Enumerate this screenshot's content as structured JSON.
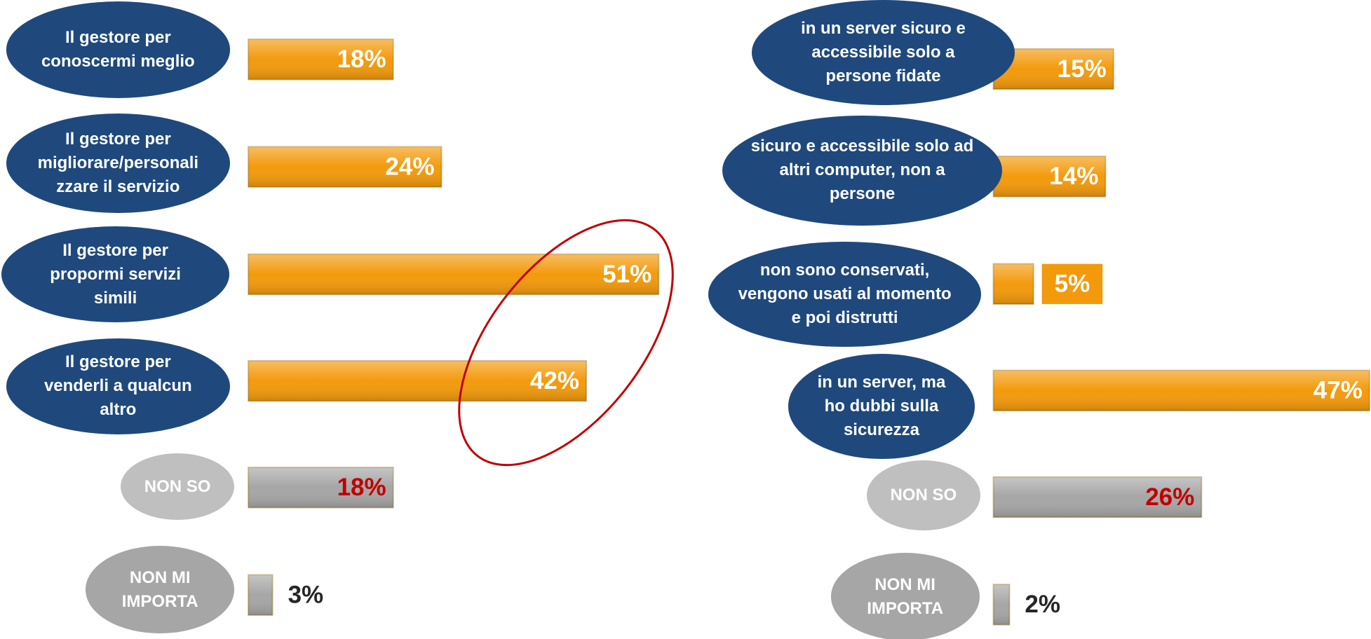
{
  "chart_data": [
    {
      "type": "bar",
      "categories": [
        "Il gestore per conoscermi meglio",
        "Il gestore per migliorare/personalizzare il servizio",
        "Il gestore per propormi servizi simili",
        "Il gestore per venderli a qualcun altro",
        "NON SO",
        "NON MI IMPORTA"
      ],
      "values": [
        18,
        24,
        51,
        42,
        18,
        3
      ],
      "value_labels": [
        "18%",
        "24%",
        "51%",
        "42%",
        "18%",
        "3%"
      ],
      "colors": [
        "#f39a0c",
        "#f39a0c",
        "#f39a0c",
        "#f39a0c",
        "#a6a6a6",
        "#a6a6a6"
      ],
      "label_colors": [
        "#ffffff",
        "#ffffff",
        "#ffffff",
        "#ffffff",
        "#c00000",
        "#262626"
      ]
    },
    {
      "type": "bar",
      "categories": [
        "in un server sicuro e accessibile solo a persone fidate",
        "sicuro e accessibile solo ad altri computer, non a persone",
        "non sono conservati, vengono usati al momento e poi distrutti",
        "in un server, ma ho dubbi sulla sicurezza",
        "NON SO",
        "NON MI IMPORTA"
      ],
      "values": [
        15,
        14,
        5,
        47,
        26,
        2
      ],
      "value_labels": [
        "15%",
        "14%",
        "5%",
        "47%",
        "26%",
        "2%"
      ],
      "colors": [
        "#f39a0c",
        "#f39a0c",
        "#f39a0c",
        "#f39a0c",
        "#a6a6a6",
        "#a6a6a6"
      ],
      "label_colors": [
        "#ffffff",
        "#ffffff",
        "#ffffff",
        "#ffffff",
        "#c00000",
        "#262626"
      ]
    }
  ]
}
